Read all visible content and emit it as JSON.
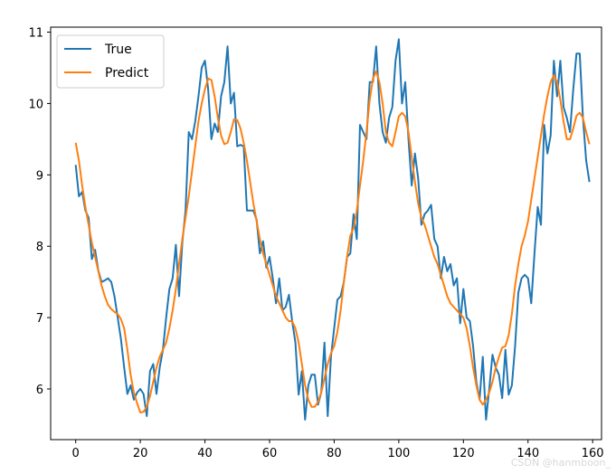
{
  "chart_data": {
    "type": "line",
    "title": "",
    "xlabel": "",
    "ylabel": "",
    "xlim": [
      -7.75,
      162.75
    ],
    "ylim": [
      5.29,
      11.07
    ],
    "xticks": [
      0,
      20,
      40,
      60,
      80,
      100,
      120,
      140,
      160
    ],
    "yticks": [
      6,
      7,
      8,
      9,
      10,
      11
    ],
    "legend": {
      "position": "top-left"
    },
    "series": [
      {
        "name": "True",
        "color": "#1f77b4",
        "values": [
          9.14,
          8.7,
          8.76,
          8.5,
          8.4,
          7.82,
          7.95,
          7.66,
          7.5,
          7.52,
          7.55,
          7.5,
          7.3,
          7.0,
          6.7,
          6.3,
          5.93,
          6.05,
          5.85,
          5.95,
          6.0,
          5.93,
          5.62,
          6.25,
          6.35,
          5.93,
          6.3,
          6.55,
          7.0,
          7.4,
          7.55,
          8.02,
          7.3,
          8.05,
          8.5,
          9.6,
          9.5,
          9.75,
          10.1,
          10.5,
          10.6,
          10.2,
          9.5,
          9.72,
          9.6,
          10.1,
          10.3,
          10.8,
          10.0,
          10.15,
          9.4,
          9.42,
          9.4,
          8.5,
          8.5,
          8.5,
          8.37,
          7.9,
          8.07,
          7.7,
          7.85,
          7.55,
          7.2,
          7.55,
          7.1,
          7.15,
          7.32,
          6.95,
          6.65,
          5.92,
          6.25,
          5.57,
          6.05,
          6.2,
          6.2,
          5.78,
          5.95,
          6.65,
          5.62,
          6.45,
          6.85,
          7.25,
          7.3,
          7.5,
          7.85,
          7.9,
          8.45,
          8.1,
          9.7,
          9.6,
          9.5,
          10.3,
          10.3,
          10.8,
          10.0,
          9.6,
          9.45,
          9.8,
          9.95,
          10.6,
          10.9,
          10.0,
          10.3,
          9.5,
          8.85,
          9.3,
          8.95,
          8.3,
          8.45,
          8.5,
          8.58,
          8.1,
          8.0,
          7.55,
          7.85,
          7.65,
          7.75,
          7.45,
          7.55,
          6.92,
          7.4,
          7.0,
          6.95,
          6.6,
          6.1,
          5.85,
          6.45,
          5.57,
          6.0,
          6.48,
          6.3,
          6.2,
          5.87,
          6.55,
          5.92,
          6.05,
          6.6,
          7.35,
          7.55,
          7.6,
          7.55,
          7.2,
          7.9,
          8.55,
          8.3,
          9.7,
          9.3,
          9.55,
          10.6,
          10.1,
          10.6,
          9.95,
          9.8,
          9.6,
          10.2,
          10.7,
          10.7,
          9.8,
          9.2,
          8.9
        ]
      },
      {
        "name": "Predict",
        "color": "#ff7f0e",
        "values": [
          9.45,
          9.2,
          8.85,
          8.55,
          8.3,
          8.05,
          7.85,
          7.65,
          7.45,
          7.3,
          7.18,
          7.12,
          7.08,
          7.05,
          6.98,
          6.85,
          6.55,
          6.2,
          5.95,
          5.8,
          5.67,
          5.68,
          5.75,
          5.9,
          6.1,
          6.3,
          6.45,
          6.55,
          6.65,
          6.85,
          7.1,
          7.4,
          7.75,
          8.1,
          8.4,
          8.7,
          9.05,
          9.4,
          9.75,
          10.0,
          10.2,
          10.35,
          10.33,
          10.1,
          9.8,
          9.55,
          9.43,
          9.45,
          9.6,
          9.78,
          9.77,
          9.65,
          9.45,
          9.2,
          8.9,
          8.6,
          8.35,
          8.1,
          7.9,
          7.75,
          7.6,
          7.45,
          7.3,
          7.2,
          7.1,
          7.0,
          6.95,
          6.95,
          6.85,
          6.65,
          6.35,
          6.05,
          5.85,
          5.75,
          5.75,
          5.82,
          5.95,
          6.15,
          6.35,
          6.5,
          6.6,
          6.8,
          7.1,
          7.5,
          7.85,
          8.15,
          8.25,
          8.5,
          8.85,
          9.2,
          9.6,
          10.05,
          10.35,
          10.45,
          10.3,
          10.0,
          9.6,
          9.45,
          9.4,
          9.6,
          9.82,
          9.87,
          9.82,
          9.6,
          9.25,
          8.9,
          8.6,
          8.4,
          8.3,
          8.15,
          8.0,
          7.85,
          7.75,
          7.6,
          7.45,
          7.3,
          7.2,
          7.15,
          7.1,
          7.05,
          7.0,
          6.85,
          6.6,
          6.3,
          6.05,
          5.85,
          5.78,
          5.85,
          5.95,
          6.1,
          6.3,
          6.45,
          6.58,
          6.6,
          6.75,
          7.05,
          7.45,
          7.75,
          8.0,
          8.15,
          8.35,
          8.65,
          8.95,
          9.25,
          9.55,
          9.85,
          10.1,
          10.3,
          10.4,
          10.3,
          10.05,
          9.75,
          9.5,
          9.5,
          9.65,
          9.83,
          9.87,
          9.8,
          9.6,
          9.43
        ]
      }
    ]
  },
  "watermark": "CSDN @hanmboon_"
}
